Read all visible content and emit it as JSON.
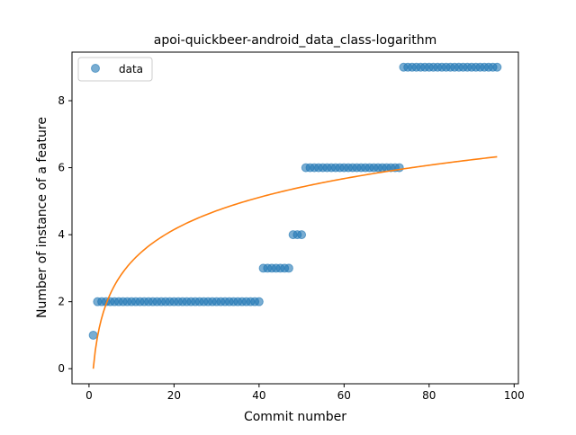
{
  "chart_data": {
    "type": "scatter",
    "title": "apoi-quickbeer-android_data_class-logarithm",
    "xlabel": "Commit number",
    "ylabel": "Number of instance of a feature",
    "xlim": [
      -4,
      101
    ],
    "ylim": [
      -0.45,
      9.45
    ],
    "xticks": [
      0,
      20,
      40,
      60,
      80,
      100
    ],
    "yticks": [
      0,
      2,
      4,
      6,
      8
    ],
    "legend": {
      "position": "top-left",
      "entries": [
        "data"
      ]
    },
    "series": [
      {
        "name": "data",
        "kind": "points",
        "color": "#1f77b4",
        "points": [
          [
            1,
            1
          ],
          [
            2,
            2
          ],
          [
            3,
            2
          ],
          [
            4,
            2
          ],
          [
            5,
            2
          ],
          [
            6,
            2
          ],
          [
            7,
            2
          ],
          [
            8,
            2
          ],
          [
            9,
            2
          ],
          [
            10,
            2
          ],
          [
            11,
            2
          ],
          [
            12,
            2
          ],
          [
            13,
            2
          ],
          [
            14,
            2
          ],
          [
            15,
            2
          ],
          [
            16,
            2
          ],
          [
            17,
            2
          ],
          [
            18,
            2
          ],
          [
            19,
            2
          ],
          [
            20,
            2
          ],
          [
            21,
            2
          ],
          [
            22,
            2
          ],
          [
            23,
            2
          ],
          [
            24,
            2
          ],
          [
            25,
            2
          ],
          [
            26,
            2
          ],
          [
            27,
            2
          ],
          [
            28,
            2
          ],
          [
            29,
            2
          ],
          [
            30,
            2
          ],
          [
            31,
            2
          ],
          [
            32,
            2
          ],
          [
            33,
            2
          ],
          [
            34,
            2
          ],
          [
            35,
            2
          ],
          [
            36,
            2
          ],
          [
            37,
            2
          ],
          [
            38,
            2
          ],
          [
            39,
            2
          ],
          [
            40,
            2
          ],
          [
            41,
            3
          ],
          [
            42,
            3
          ],
          [
            43,
            3
          ],
          [
            44,
            3
          ],
          [
            45,
            3
          ],
          [
            46,
            3
          ],
          [
            47,
            3
          ],
          [
            48,
            4
          ],
          [
            49,
            4
          ],
          [
            50,
            4
          ],
          [
            51,
            6
          ],
          [
            52,
            6
          ],
          [
            53,
            6
          ],
          [
            54,
            6
          ],
          [
            55,
            6
          ],
          [
            56,
            6
          ],
          [
            57,
            6
          ],
          [
            58,
            6
          ],
          [
            59,
            6
          ],
          [
            60,
            6
          ],
          [
            61,
            6
          ],
          [
            62,
            6
          ],
          [
            63,
            6
          ],
          [
            64,
            6
          ],
          [
            65,
            6
          ],
          [
            66,
            6
          ],
          [
            67,
            6
          ],
          [
            68,
            6
          ],
          [
            69,
            6
          ],
          [
            70,
            6
          ],
          [
            71,
            6
          ],
          [
            72,
            6
          ],
          [
            73,
            6
          ],
          [
            74,
            9
          ],
          [
            75,
            9
          ],
          [
            76,
            9
          ],
          [
            77,
            9
          ],
          [
            78,
            9
          ],
          [
            79,
            9
          ],
          [
            80,
            9
          ],
          [
            81,
            9
          ],
          [
            82,
            9
          ],
          [
            83,
            9
          ],
          [
            84,
            9
          ],
          [
            85,
            9
          ],
          [
            86,
            9
          ],
          [
            87,
            9
          ],
          [
            88,
            9
          ],
          [
            89,
            9
          ],
          [
            90,
            9
          ],
          [
            91,
            9
          ],
          [
            92,
            9
          ],
          [
            93,
            9
          ],
          [
            94,
            9
          ],
          [
            95,
            9
          ],
          [
            96,
            9
          ]
        ]
      },
      {
        "name": "",
        "kind": "line",
        "color": "#ff7f0e",
        "fit": {
          "model": "a*ln(x)+b",
          "a": 1.386,
          "b": 0.0,
          "x_range": [
            1,
            96
          ]
        }
      }
    ]
  }
}
